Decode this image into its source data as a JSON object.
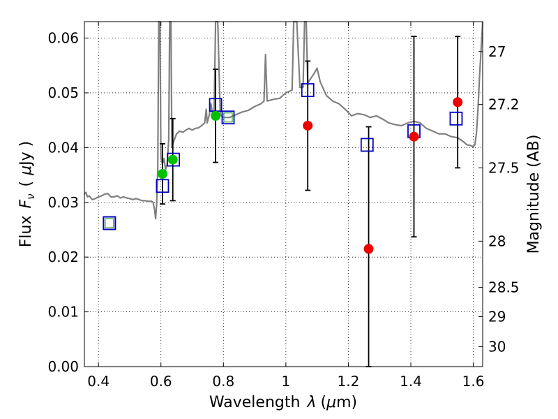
{
  "chart_data": {
    "type": "scatter",
    "xlabel_main": "Wavelength",
    "xlabel_symbol": "λ",
    "xlabel_unit_open": "(",
    "xlabel_unit_mu": "μ",
    "xlabel_unit_rest": "m)",
    "ylabel_main": "Flux",
    "ylabel_F": "F",
    "ylabel_nu": "ν",
    "ylabel_unit_open": "(",
    "ylabel_unit_mu": "μ",
    "ylabel_unit_rest": "Jy )",
    "ylabel_right": "Magnitude (AB)",
    "xlim": [
      0.355,
      1.63
    ],
    "ylim": [
      0.0,
      0.063
    ],
    "grid": true,
    "x_ticks": [
      {
        "v": 0.4,
        "label": "0.4"
      },
      {
        "v": 0.6,
        "label": "0.6"
      },
      {
        "v": 0.8,
        "label": "0.8"
      },
      {
        "v": 1.0,
        "label": "1"
      },
      {
        "v": 1.2,
        "label": "1.2"
      },
      {
        "v": 1.4,
        "label": "1.4"
      },
      {
        "v": 1.6,
        "label": "1.6"
      }
    ],
    "y_ticks": [
      {
        "v": 0.0,
        "label": "0.00"
      },
      {
        "v": 0.01,
        "label": "0.01"
      },
      {
        "v": 0.02,
        "label": "0.02"
      },
      {
        "v": 0.03,
        "label": "0.03"
      },
      {
        "v": 0.04,
        "label": "0.04"
      },
      {
        "v": 0.05,
        "label": "0.05"
      },
      {
        "v": 0.06,
        "label": "0.06"
      }
    ],
    "mag_ticks": [
      {
        "v": 27.0,
        "label": "27"
      },
      {
        "v": 27.2,
        "label": "27.2"
      },
      {
        "v": 27.5,
        "label": "27.5"
      },
      {
        "v": 28.0,
        "label": "28"
      },
      {
        "v": 28.5,
        "label": "28.5"
      },
      {
        "v": 29.0,
        "label": "29"
      },
      {
        "v": 30.0,
        "label": "30"
      }
    ],
    "model_color": "#808080",
    "model_spectrum": [
      [
        0.355,
        0.0315
      ],
      [
        0.36,
        0.0318
      ],
      [
        0.365,
        0.031
      ],
      [
        0.37,
        0.0312
      ],
      [
        0.38,
        0.0305
      ],
      [
        0.39,
        0.0307
      ],
      [
        0.4,
        0.031
      ],
      [
        0.41,
        0.0312
      ],
      [
        0.42,
        0.0315
      ],
      [
        0.43,
        0.0316
      ],
      [
        0.44,
        0.031
      ],
      [
        0.45,
        0.031
      ],
      [
        0.46,
        0.0312
      ],
      [
        0.47,
        0.0308
      ],
      [
        0.48,
        0.031
      ],
      [
        0.49,
        0.0308
      ],
      [
        0.5,
        0.0307
      ],
      [
        0.51,
        0.0305
      ],
      [
        0.52,
        0.0307
      ],
      [
        0.53,
        0.0305
      ],
      [
        0.54,
        0.0303
      ],
      [
        0.55,
        0.0303
      ],
      [
        0.56,
        0.0302
      ],
      [
        0.57,
        0.0302
      ],
      [
        0.575,
        0.03
      ],
      [
        0.58,
        0.0285
      ],
      [
        0.583,
        0.027
      ],
      [
        0.586,
        0.0295
      ],
      [
        0.59,
        0.036
      ],
      [
        0.593,
        0.063
      ],
      [
        0.597,
        0.063
      ],
      [
        0.6,
        0.038
      ],
      [
        0.605,
        0.037
      ],
      [
        0.61,
        0.038
      ],
      [
        0.615,
        0.036
      ],
      [
        0.62,
        0.037
      ],
      [
        0.625,
        0.0415
      ],
      [
        0.628,
        0.063
      ],
      [
        0.632,
        0.063
      ],
      [
        0.635,
        0.04
      ],
      [
        0.64,
        0.041
      ],
      [
        0.65,
        0.0425
      ],
      [
        0.66,
        0.043
      ],
      [
        0.67,
        0.0428
      ],
      [
        0.68,
        0.0432
      ],
      [
        0.69,
        0.0435
      ],
      [
        0.7,
        0.0432
      ],
      [
        0.71,
        0.0435
      ],
      [
        0.72,
        0.0436
      ],
      [
        0.73,
        0.044
      ],
      [
        0.74,
        0.0445
      ],
      [
        0.745,
        0.047
      ],
      [
        0.748,
        0.0445
      ],
      [
        0.755,
        0.046
      ],
      [
        0.76,
        0.048
      ],
      [
        0.765,
        0.0463
      ],
      [
        0.77,
        0.046
      ],
      [
        0.775,
        0.063
      ],
      [
        0.782,
        0.063
      ],
      [
        0.79,
        0.046
      ],
      [
        0.8,
        0.0455
      ],
      [
        0.82,
        0.0455
      ],
      [
        0.84,
        0.046
      ],
      [
        0.86,
        0.0465
      ],
      [
        0.88,
        0.0468
      ],
      [
        0.9,
        0.0475
      ],
      [
        0.92,
        0.048
      ],
      [
        0.93,
        0.0485
      ],
      [
        0.935,
        0.057
      ],
      [
        0.94,
        0.0485
      ],
      [
        0.96,
        0.0488
      ],
      [
        0.98,
        0.049
      ],
      [
        1.0,
        0.05
      ],
      [
        1.02,
        0.0505
      ],
      [
        1.025,
        0.063
      ],
      [
        1.035,
        0.063
      ],
      [
        1.045,
        0.051
      ],
      [
        1.055,
        0.051
      ],
      [
        1.06,
        0.063
      ],
      [
        1.065,
        0.063
      ],
      [
        1.07,
        0.0518
      ],
      [
        1.09,
        0.0535
      ],
      [
        1.1,
        0.0545
      ],
      [
        1.11,
        0.052
      ],
      [
        1.13,
        0.0495
      ],
      [
        1.15,
        0.0485
      ],
      [
        1.17,
        0.048
      ],
      [
        1.19,
        0.047
      ],
      [
        1.21,
        0.0458
      ],
      [
        1.23,
        0.0462
      ],
      [
        1.25,
        0.046
      ],
      [
        1.27,
        0.0455
      ],
      [
        1.29,
        0.0458
      ],
      [
        1.31,
        0.0452
      ],
      [
        1.33,
        0.0445
      ],
      [
        1.35,
        0.0442
      ],
      [
        1.37,
        0.044
      ],
      [
        1.39,
        0.0445
      ],
      [
        1.41,
        0.0448
      ],
      [
        1.43,
        0.0445
      ],
      [
        1.45,
        0.0435
      ],
      [
        1.47,
        0.043
      ],
      [
        1.49,
        0.0425
      ],
      [
        1.51,
        0.0425
      ],
      [
        1.53,
        0.042
      ],
      [
        1.55,
        0.0418
      ],
      [
        1.57,
        0.041
      ],
      [
        1.58,
        0.0405
      ],
      [
        1.59,
        0.0404
      ],
      [
        1.6,
        0.0402
      ],
      [
        1.605,
        0.0405
      ],
      [
        1.61,
        0.0425
      ],
      [
        1.615,
        0.047
      ],
      [
        1.62,
        0.053
      ],
      [
        1.625,
        0.058
      ],
      [
        1.63,
        0.063
      ]
    ],
    "squares": [
      {
        "x": 0.435,
        "y": 0.0262
      },
      {
        "x": 0.435,
        "y": 0.0262
      },
      {
        "x": 0.605,
        "y": 0.033
      },
      {
        "x": 0.64,
        "y": 0.0378
      },
      {
        "x": 0.775,
        "y": 0.0478
      },
      {
        "x": 0.815,
        "y": 0.0455
      },
      {
        "x": 1.07,
        "y": 0.0505
      },
      {
        "x": 1.26,
        "y": 0.0405
      },
      {
        "x": 1.41,
        "y": 0.043
      },
      {
        "x": 1.545,
        "y": 0.0453
      }
    ],
    "green_inner_squares": [
      {
        "x": 0.435,
        "y": 0.0262
      },
      {
        "x": 0.815,
        "y": 0.0455
      }
    ],
    "green_points": [
      {
        "x": 0.605,
        "y": 0.0352,
        "yerr_low": 0.0055,
        "yerr_high": 0.0055
      },
      {
        "x": 0.638,
        "y": 0.0378,
        "yerr_low": 0.0075,
        "yerr_high": 0.0075
      },
      {
        "x": 0.775,
        "y": 0.0458,
        "yerr_low": 0.0085,
        "yerr_high": 0.0085
      }
    ],
    "red_points": [
      {
        "x": 1.07,
        "y": 0.044,
        "yerr_low": 0.0118,
        "yerr_high": 0.0118
      },
      {
        "x": 1.265,
        "y": 0.0215,
        "yerr_low": 0.0223,
        "yerr_high": 0.0223
      },
      {
        "x": 1.41,
        "y": 0.042,
        "yerr_low": 0.0183,
        "yerr_high": 0.0183
      },
      {
        "x": 1.55,
        "y": 0.0483,
        "yerr_low": 0.012,
        "yerr_high": 0.012
      }
    ],
    "colors": {
      "square": "#0000bf",
      "inner_square": "#2ca02c",
      "green": "#00c000",
      "red": "#ee0000",
      "errorbar": "#000000"
    }
  }
}
